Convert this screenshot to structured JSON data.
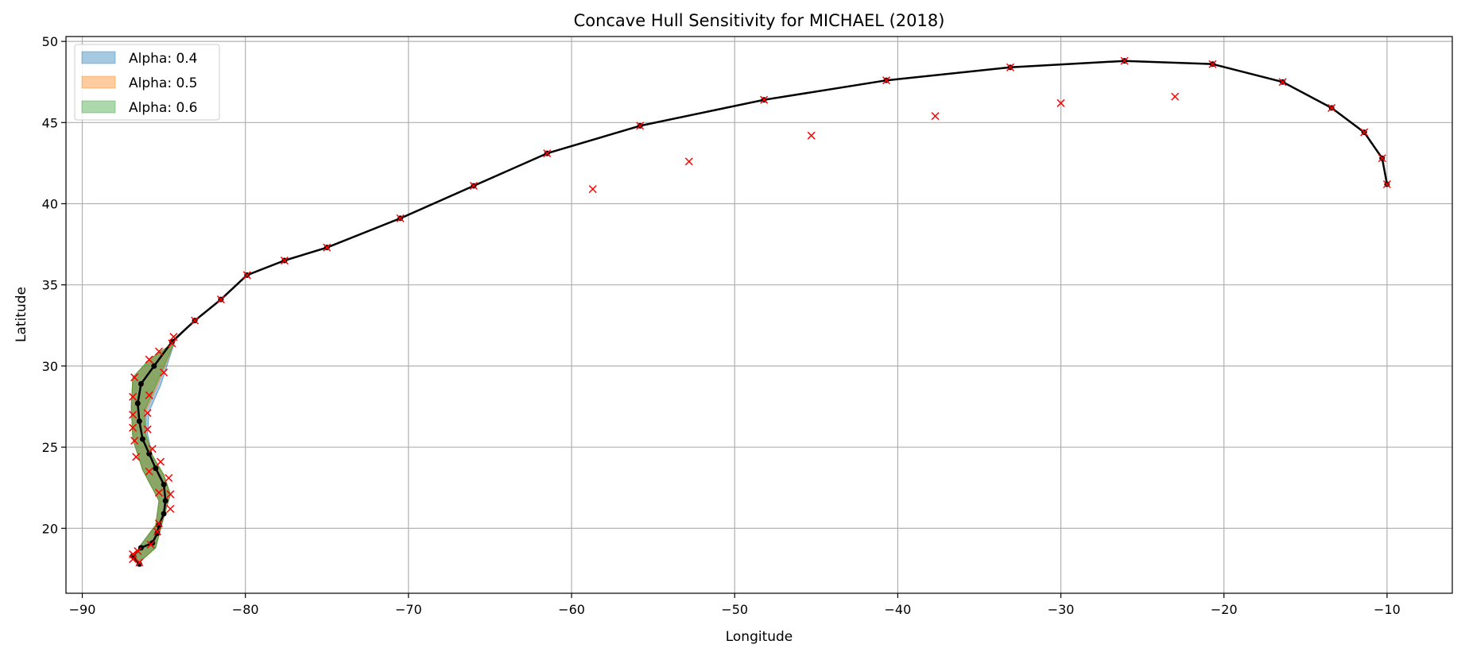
{
  "chart_data": {
    "type": "line",
    "title": "Concave Hull Sensitivity for MICHAEL (2018)",
    "xlabel": "Longitude",
    "ylabel": "Latitude",
    "xlim": [
      -91,
      -6
    ],
    "ylim": [
      16,
      50.3
    ],
    "xticks": [
      -90,
      -80,
      -70,
      -60,
      -50,
      -40,
      -30,
      -20,
      -10
    ],
    "yticks": [
      20,
      25,
      30,
      35,
      40,
      45,
      50
    ],
    "grid": true,
    "legend_position": "top-left",
    "colors": {
      "track": "#000000",
      "markers": "#ff0000",
      "alpha_04": "#1f77b4",
      "alpha_05": "#ff7f0e",
      "alpha_06": "#2ca02c"
    },
    "hulls": [
      {
        "name": "Alpha: 0.4",
        "opacity": 0.4,
        "points": [
          [
            -86.9,
            18.1
          ],
          [
            -86.5,
            17.9
          ],
          [
            -85.5,
            18.8
          ],
          [
            -85.0,
            20.7
          ],
          [
            -84.6,
            22.1
          ],
          [
            -85.0,
            23.3
          ],
          [
            -85.7,
            24.5
          ],
          [
            -86.0,
            25.8
          ],
          [
            -85.9,
            27.2
          ],
          [
            -85.2,
            28.8
          ],
          [
            -84.3,
            31.6
          ],
          [
            -83.1,
            32.8
          ],
          [
            -84.6,
            31.3
          ],
          [
            -85.9,
            30.4
          ],
          [
            -86.9,
            29.3
          ],
          [
            -87.0,
            27.5
          ],
          [
            -86.9,
            25.5
          ],
          [
            -86.3,
            23.6
          ],
          [
            -85.3,
            21.7
          ],
          [
            -85.5,
            20.2
          ],
          [
            -86.4,
            19.0
          ]
        ]
      },
      {
        "name": "Alpha: 0.5",
        "opacity": 0.4,
        "points": [
          [
            -86.9,
            18.1
          ],
          [
            -86.5,
            17.9
          ],
          [
            -85.5,
            18.8
          ],
          [
            -85.0,
            20.7
          ],
          [
            -84.6,
            22.1
          ],
          [
            -85.0,
            23.3
          ],
          [
            -85.7,
            24.5
          ],
          [
            -86.1,
            25.8
          ],
          [
            -86.1,
            27.2
          ],
          [
            -85.4,
            28.8
          ],
          [
            -84.3,
            31.6
          ],
          [
            -83.1,
            32.8
          ],
          [
            -84.6,
            31.3
          ],
          [
            -85.9,
            30.4
          ],
          [
            -86.9,
            29.3
          ],
          [
            -87.0,
            27.5
          ],
          [
            -86.9,
            25.5
          ],
          [
            -86.3,
            23.6
          ],
          [
            -85.3,
            21.7
          ],
          [
            -85.5,
            20.2
          ],
          [
            -86.4,
            19.0
          ]
        ]
      },
      {
        "name": "Alpha: 0.6",
        "opacity": 0.4,
        "points": [
          [
            -86.9,
            18.1
          ],
          [
            -86.5,
            17.9
          ],
          [
            -85.5,
            18.8
          ],
          [
            -85.0,
            20.7
          ],
          [
            -84.6,
            22.1
          ],
          [
            -85.0,
            23.3
          ],
          [
            -85.7,
            24.5
          ],
          [
            -86.1,
            25.8
          ],
          [
            -86.2,
            27.2
          ],
          [
            -85.5,
            28.8
          ],
          [
            -84.3,
            31.6
          ],
          [
            -83.1,
            32.8
          ],
          [
            -84.6,
            31.3
          ],
          [
            -85.9,
            30.4
          ],
          [
            -86.9,
            29.3
          ],
          [
            -87.0,
            27.5
          ],
          [
            -86.9,
            25.5
          ],
          [
            -86.3,
            23.6
          ],
          [
            -85.3,
            21.7
          ],
          [
            -85.5,
            20.2
          ],
          [
            -86.4,
            19.0
          ]
        ]
      }
    ],
    "track": [
      [
        -86.5,
        17.8
      ],
      [
        -86.9,
        18.3
      ],
      [
        -86.4,
        18.8
      ],
      [
        -85.7,
        19.1
      ],
      [
        -85.4,
        19.7
      ],
      [
        -85.3,
        20.2
      ],
      [
        -85.0,
        20.9
      ],
      [
        -84.9,
        21.7
      ],
      [
        -85.0,
        22.7
      ],
      [
        -85.5,
        23.7
      ],
      [
        -85.9,
        24.6
      ],
      [
        -86.3,
        25.5
      ],
      [
        -86.5,
        26.6
      ],
      [
        -86.6,
        27.7
      ],
      [
        -86.4,
        28.9
      ],
      [
        -85.6,
        30.0
      ],
      [
        -84.5,
        31.5
      ],
      [
        -83.1,
        32.8
      ],
      [
        -81.5,
        34.1
      ],
      [
        -79.9,
        35.6
      ],
      [
        -77.6,
        36.5
      ],
      [
        -75.0,
        37.3
      ],
      [
        -70.5,
        39.1
      ],
      [
        -66.0,
        41.1
      ],
      [
        -61.5,
        43.1
      ],
      [
        -55.8,
        44.8
      ],
      [
        -48.2,
        46.4
      ],
      [
        -40.7,
        47.6
      ],
      [
        -33.1,
        48.4
      ],
      [
        -26.1,
        48.8
      ],
      [
        -20.7,
        48.6
      ],
      [
        -16.4,
        47.5
      ],
      [
        -13.4,
        45.9
      ],
      [
        -11.4,
        44.4
      ],
      [
        -10.3,
        42.8
      ],
      [
        -10.0,
        41.2
      ]
    ],
    "markers": [
      [
        -86.5,
        17.9
      ],
      [
        -86.9,
        18.1
      ],
      [
        -86.9,
        18.4
      ],
      [
        -86.6,
        18.6
      ],
      [
        -85.8,
        19.0
      ],
      [
        -85.4,
        19.8
      ],
      [
        -85.3,
        20.3
      ],
      [
        -84.6,
        21.2
      ],
      [
        -84.6,
        22.1
      ],
      [
        -84.7,
        23.1
      ],
      [
        -85.3,
        22.2
      ],
      [
        -85.2,
        24.1
      ],
      [
        -85.9,
        23.5
      ],
      [
        -85.7,
        24.9
      ],
      [
        -86.0,
        26.1
      ],
      [
        -86.7,
        24.4
      ],
      [
        -86.8,
        25.4
      ],
      [
        -86.9,
        26.2
      ],
      [
        -86.9,
        27.0
      ],
      [
        -86.9,
        28.1
      ],
      [
        -86.0,
        27.1
      ],
      [
        -85.9,
        28.2
      ],
      [
        -86.8,
        29.3
      ],
      [
        -85.9,
        30.4
      ],
      [
        -85.3,
        30.9
      ],
      [
        -85.0,
        29.6
      ],
      [
        -84.4,
        31.8
      ],
      [
        -84.5,
        31.4
      ],
      [
        -83.1,
        32.8
      ],
      [
        -81.5,
        34.1
      ],
      [
        -79.9,
        35.6
      ],
      [
        -77.6,
        36.5
      ],
      [
        -75.0,
        37.3
      ],
      [
        -70.5,
        39.1
      ],
      [
        -66.0,
        41.1
      ],
      [
        -61.5,
        43.1
      ],
      [
        -58.7,
        40.9
      ],
      [
        -55.8,
        44.8
      ],
      [
        -52.8,
        42.6
      ],
      [
        -48.2,
        46.4
      ],
      [
        -45.3,
        44.2
      ],
      [
        -40.7,
        47.6
      ],
      [
        -37.7,
        45.4
      ],
      [
        -33.1,
        48.4
      ],
      [
        -30.0,
        46.2
      ],
      [
        -26.1,
        48.8
      ],
      [
        -23.0,
        46.6
      ],
      [
        -20.7,
        48.6
      ],
      [
        -16.4,
        47.5
      ],
      [
        -13.4,
        45.9
      ],
      [
        -11.4,
        44.4
      ],
      [
        -10.3,
        42.8
      ],
      [
        -10.0,
        41.2
      ]
    ]
  }
}
